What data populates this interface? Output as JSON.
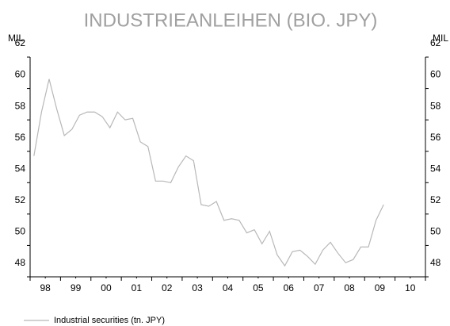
{
  "chart_data": {
    "type": "line",
    "title": "INDUSTRIEANLEIHEN (BIO. JPY)",
    "y_label": "MIL",
    "y2_label": "MIL",
    "xlim": [
      1998,
      2011
    ],
    "xticks": [
      {
        "value": 1998.5,
        "label": "98"
      },
      {
        "value": 1999.5,
        "label": "99"
      },
      {
        "value": 2000.5,
        "label": "00"
      },
      {
        "value": 2001.5,
        "label": "01"
      },
      {
        "value": 2002.5,
        "label": "02"
      },
      {
        "value": 2003.5,
        "label": "03"
      },
      {
        "value": 2004.5,
        "label": "04"
      },
      {
        "value": 2005.5,
        "label": "05"
      },
      {
        "value": 2006.5,
        "label": "06"
      },
      {
        "value": 2007.5,
        "label": "07"
      },
      {
        "value": 2008.5,
        "label": "08"
      },
      {
        "value": 2009.5,
        "label": "09"
      },
      {
        "value": 2010.5,
        "label": "10"
      }
    ],
    "ylim": [
      48,
      62
    ],
    "yticks": [
      48,
      50,
      52,
      54,
      56,
      58,
      60,
      62
    ],
    "y2lim": [
      48,
      62
    ],
    "y2ticks": [
      48,
      50,
      52,
      54,
      56,
      58,
      60,
      62
    ],
    "x": [
      1998.125,
      1998.375,
      1998.625,
      1998.875,
      1999.125,
      1999.375,
      1999.625,
      1999.875,
      2000.125,
      2000.375,
      2000.625,
      2000.875,
      2001.125,
      2001.375,
      2001.625,
      2001.875,
      2002.125,
      2002.375,
      2002.625,
      2002.875,
      2003.125,
      2003.375,
      2003.625,
      2003.875,
      2004.125,
      2004.375,
      2004.625,
      2004.875,
      2005.125,
      2005.375,
      2005.625,
      2005.875,
      2006.125,
      2006.375,
      2006.625,
      2006.875,
      2007.125,
      2007.375,
      2007.625,
      2007.875,
      2008.125,
      2008.375,
      2008.625,
      2008.875,
      2009.125,
      2009.375,
      2009.625
    ],
    "series": [
      {
        "name": "Industrial securities (tn. JPY)",
        "color": "#b8b8b8",
        "values": [
          55.7,
          58.5,
          60.6,
          58.7,
          57.0,
          57.4,
          58.3,
          58.5,
          58.5,
          58.2,
          57.5,
          58.5,
          58.0,
          58.1,
          56.6,
          56.3,
          54.1,
          54.1,
          54.0,
          55.0,
          55.7,
          55.4,
          52.6,
          52.5,
          52.8,
          51.6,
          51.7,
          51.6,
          50.8,
          51.0,
          50.1,
          50.9,
          49.4,
          48.7,
          49.6,
          49.7,
          49.3,
          48.8,
          49.7,
          50.2,
          49.5,
          48.9,
          49.1,
          49.9,
          49.9,
          51.6,
          52.6
        ]
      }
    ]
  }
}
